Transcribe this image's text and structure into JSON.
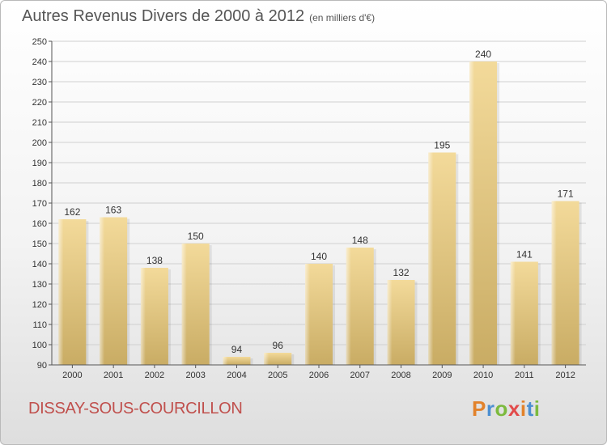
{
  "header": {
    "title": "Autres Revenus Divers de 2000 à 2012",
    "unit_note": "(en milliers d'€)"
  },
  "footer": {
    "commune": "DISSAY-SOUS-COURCILLON",
    "brand": "Proxiti"
  },
  "colors": {
    "bar": "#e4c884",
    "commune_text": "#c0504d"
  },
  "chart_data": {
    "type": "bar",
    "categories": [
      "2000",
      "2001",
      "2002",
      "2003",
      "2004",
      "2005",
      "2006",
      "2007",
      "2008",
      "2009",
      "2010",
      "2011",
      "2012"
    ],
    "values": [
      162,
      163,
      138,
      150,
      94,
      96,
      140,
      148,
      132,
      195,
      240,
      141,
      171
    ],
    "title": "Autres Revenus Divers de 2000 à 2012",
    "subtitle": "(en milliers d'€)",
    "xlabel": "",
    "ylabel": "",
    "ylim": [
      90,
      250
    ],
    "yticks": [
      90,
      100,
      110,
      120,
      130,
      140,
      150,
      160,
      170,
      180,
      190,
      200,
      210,
      220,
      230,
      240,
      250
    ],
    "grid": true,
    "legend": "none"
  }
}
